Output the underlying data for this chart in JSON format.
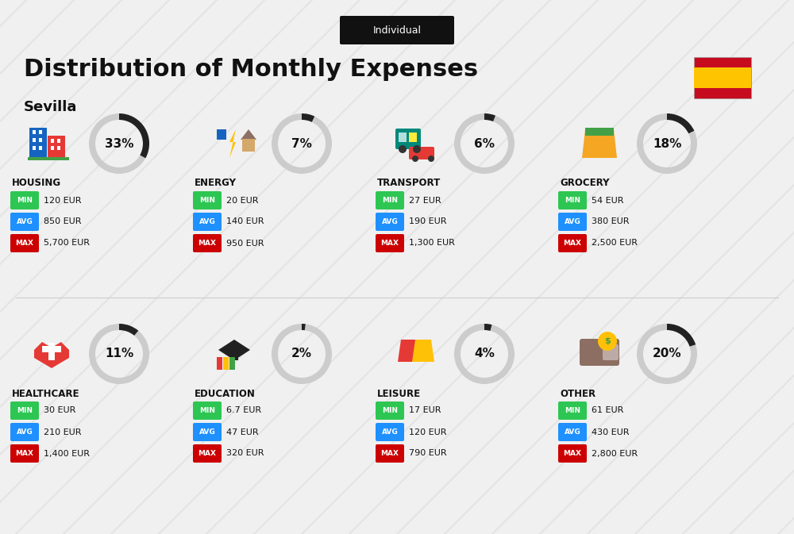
{
  "title": "Distribution of Monthly Expenses",
  "subtitle": "Individual",
  "city": "Sevilla",
  "bg_color": "#f0f0f0",
  "categories": [
    {
      "name": "HOUSING",
      "pct": 33,
      "min": "120 EUR",
      "avg": "850 EUR",
      "max": "5,700 EUR",
      "icon": "housing",
      "row": 0,
      "col": 0
    },
    {
      "name": "ENERGY",
      "pct": 7,
      "min": "20 EUR",
      "avg": "140 EUR",
      "max": "950 EUR",
      "icon": "energy",
      "row": 0,
      "col": 1
    },
    {
      "name": "TRANSPORT",
      "pct": 6,
      "min": "27 EUR",
      "avg": "190 EUR",
      "max": "1,300 EUR",
      "icon": "transport",
      "row": 0,
      "col": 2
    },
    {
      "name": "GROCERY",
      "pct": 18,
      "min": "54 EUR",
      "avg": "380 EUR",
      "max": "2,500 EUR",
      "icon": "grocery",
      "row": 0,
      "col": 3
    },
    {
      "name": "HEALTHCARE",
      "pct": 11,
      "min": "30 EUR",
      "avg": "210 EUR",
      "max": "1,400 EUR",
      "icon": "healthcare",
      "row": 1,
      "col": 0
    },
    {
      "name": "EDUCATION",
      "pct": 2,
      "min": "6.7 EUR",
      "avg": "47 EUR",
      "max": "320 EUR",
      "icon": "education",
      "row": 1,
      "col": 1
    },
    {
      "name": "LEISURE",
      "pct": 4,
      "min": "17 EUR",
      "avg": "120 EUR",
      "max": "790 EUR",
      "icon": "leisure",
      "row": 1,
      "col": 2
    },
    {
      "name": "OTHER",
      "pct": 20,
      "min": "61 EUR",
      "avg": "430 EUR",
      "max": "2,800 EUR",
      "icon": "other",
      "row": 1,
      "col": 3
    }
  ],
  "min_color": "#2dc653",
  "avg_color": "#1e90ff",
  "max_color": "#cc0000",
  "label_text_color": "#ffffff",
  "donut_dark": "#222222",
  "donut_light": "#cccccc"
}
